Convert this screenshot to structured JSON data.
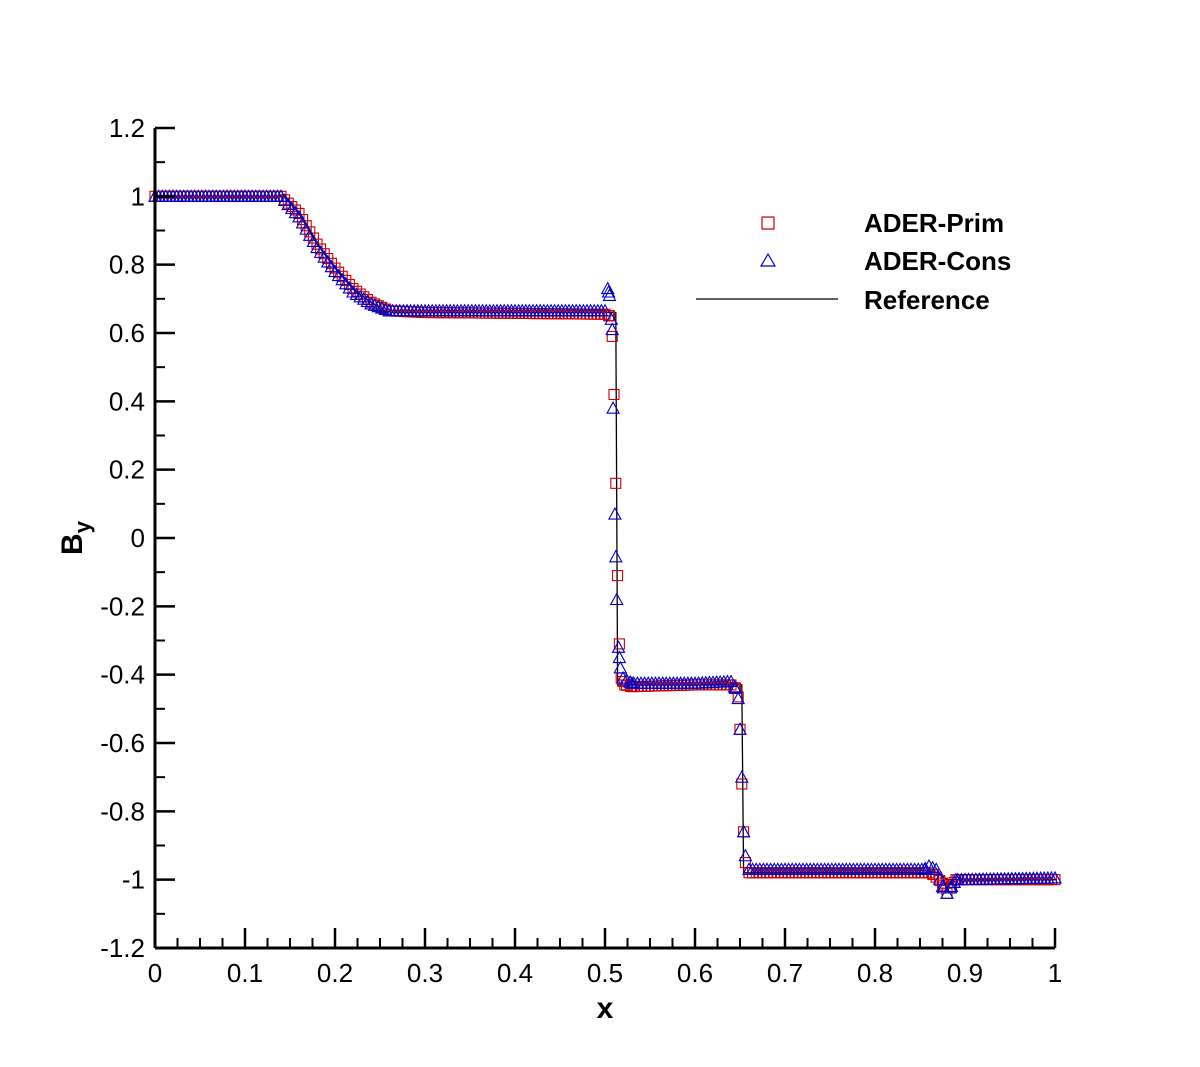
{
  "chart_data": {
    "type": "line",
    "xlabel": "x",
    "ylabel_main": "B",
    "ylabel_sub": "y",
    "xlim": [
      0,
      1
    ],
    "ylim": [
      -1.2,
      1.2
    ],
    "x_ticks": [
      0,
      0.1,
      0.2,
      0.3,
      0.4,
      0.5,
      0.6,
      0.7,
      0.8,
      0.9,
      1
    ],
    "x_tick_labels": [
      "0",
      "0.1",
      "0.2",
      "0.3",
      "0.4",
      "0.5",
      "0.6",
      "0.7",
      "0.8",
      "0.9",
      "1"
    ],
    "y_ticks": [
      -1.2,
      -1,
      -0.8,
      -0.6,
      -0.4,
      -0.2,
      0,
      0.2,
      0.4,
      0.6,
      0.8,
      1,
      1.2
    ],
    "y_tick_labels": [
      "-1.2",
      "-1",
      "-0.8",
      "-0.6",
      "-0.4",
      "-0.2",
      "0",
      "0.2",
      "0.4",
      "0.6",
      "0.8",
      "1",
      "1.2"
    ],
    "grid": false,
    "legend_position": "top-right",
    "colors": {
      "prim": "#cc0000",
      "cons": "#0000cc",
      "reference": "#000000"
    },
    "series": [
      {
        "name": "ADER-Prim",
        "marker": "square",
        "color": "#cc0000",
        "x_start": 0.0,
        "x_end": 1.0,
        "x_step": 0.004,
        "dense_extra_x": [],
        "profile_points": [
          [
            0.0,
            1.0
          ],
          [
            0.14,
            1.0
          ],
          [
            0.16,
            0.95
          ],
          [
            0.18,
            0.86
          ],
          [
            0.2,
            0.79
          ],
          [
            0.22,
            0.73
          ],
          [
            0.24,
            0.69
          ],
          [
            0.26,
            0.665
          ],
          [
            0.3,
            0.66
          ],
          [
            0.5,
            0.655
          ],
          [
            0.505,
            0.65
          ],
          [
            0.508,
            0.59
          ],
          [
            0.51,
            0.42
          ],
          [
            0.512,
            0.16
          ],
          [
            0.514,
            -0.11
          ],
          [
            0.516,
            -0.31
          ],
          [
            0.518,
            -0.41
          ],
          [
            0.522,
            -0.43
          ],
          [
            0.53,
            -0.435
          ],
          [
            0.6,
            -0.43
          ],
          [
            0.64,
            -0.43
          ],
          [
            0.645,
            -0.44
          ],
          [
            0.648,
            -0.465
          ],
          [
            0.65,
            -0.56
          ],
          [
            0.652,
            -0.72
          ],
          [
            0.654,
            -0.86
          ],
          [
            0.656,
            -0.95
          ],
          [
            0.66,
            -0.98
          ],
          [
            0.7,
            -0.98
          ],
          [
            0.86,
            -0.98
          ],
          [
            0.865,
            -0.985
          ],
          [
            0.875,
            -1.01
          ],
          [
            0.88,
            -1.04
          ],
          [
            0.885,
            -1.02
          ],
          [
            0.89,
            -1.0
          ],
          [
            1.0,
            -1.0
          ]
        ]
      },
      {
        "name": "ADER-Cons",
        "marker": "triangle",
        "color": "#0000cc",
        "x_start": 0.0,
        "x_end": 1.0,
        "x_step": 0.004,
        "profile_points": [
          [
            0.0,
            1.0
          ],
          [
            0.14,
            1.0
          ],
          [
            0.16,
            0.94
          ],
          [
            0.18,
            0.85
          ],
          [
            0.2,
            0.78
          ],
          [
            0.22,
            0.72
          ],
          [
            0.24,
            0.685
          ],
          [
            0.26,
            0.665
          ],
          [
            0.3,
            0.665
          ],
          [
            0.5,
            0.665
          ],
          [
            0.503,
            0.73
          ],
          [
            0.505,
            0.71
          ],
          [
            0.507,
            0.64
          ],
          [
            0.508,
            0.61
          ],
          [
            0.509,
            0.38
          ],
          [
            0.511,
            0.07
          ],
          [
            0.513,
            -0.18
          ],
          [
            0.515,
            -0.32
          ],
          [
            0.517,
            -0.38
          ],
          [
            0.52,
            -0.41
          ],
          [
            0.53,
            -0.425
          ],
          [
            0.6,
            -0.425
          ],
          [
            0.64,
            -0.42
          ],
          [
            0.645,
            -0.44
          ],
          [
            0.648,
            -0.47
          ],
          [
            0.65,
            -0.56
          ],
          [
            0.652,
            -0.7
          ],
          [
            0.654,
            -0.86
          ],
          [
            0.656,
            -0.93
          ],
          [
            0.66,
            -0.97
          ],
          [
            0.7,
            -0.97
          ],
          [
            0.855,
            -0.97
          ],
          [
            0.86,
            -0.96
          ],
          [
            0.868,
            -0.97
          ],
          [
            0.875,
            -1.02
          ],
          [
            0.88,
            -1.04
          ],
          [
            0.885,
            -1.02
          ],
          [
            0.89,
            -1.0
          ],
          [
            1.0,
            -0.995
          ]
        ]
      },
      {
        "name": "Reference",
        "marker": "line",
        "color": "#000000",
        "points": [
          [
            0.0,
            1.0
          ],
          [
            0.145,
            1.0
          ],
          [
            0.16,
            0.95
          ],
          [
            0.18,
            0.86
          ],
          [
            0.2,
            0.79
          ],
          [
            0.22,
            0.73
          ],
          [
            0.24,
            0.69
          ],
          [
            0.255,
            0.665
          ],
          [
            0.265,
            0.66
          ],
          [
            0.51,
            0.66
          ],
          [
            0.512,
            0.66
          ],
          [
            0.514,
            -0.43
          ],
          [
            0.65,
            -0.43
          ],
          [
            0.652,
            -0.43
          ],
          [
            0.654,
            -0.98
          ],
          [
            0.87,
            -0.98
          ],
          [
            0.88,
            -1.0
          ],
          [
            1.0,
            -1.0
          ]
        ]
      }
    ]
  }
}
